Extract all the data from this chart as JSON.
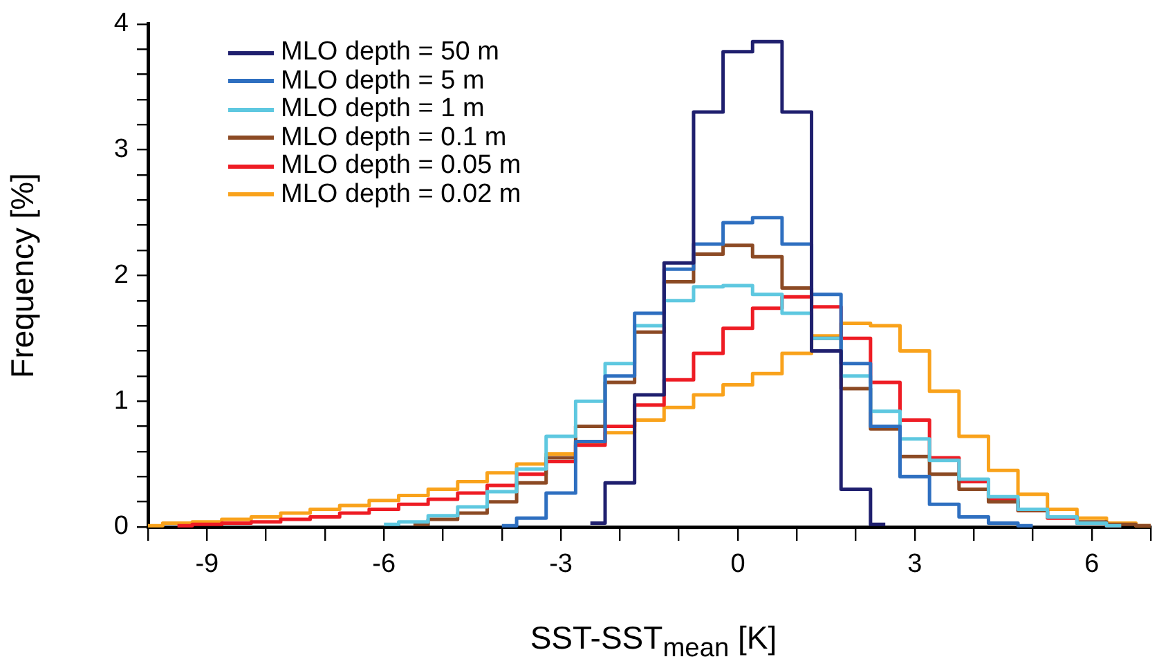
{
  "chart_data": {
    "type": "step",
    "xlabel": "SST-SST$_{mean}$ [K]",
    "ylabel": "Frequency [%]",
    "x": [
      -10,
      -9.5,
      -9,
      -8.5,
      -8,
      -7.5,
      -7,
      -6.5,
      -6,
      -5.5,
      -5,
      -4.5,
      -4,
      -3.5,
      -3,
      -2.5,
      -2,
      -1.5,
      -1,
      -0.5,
      0,
      0.5,
      1,
      1.5,
      2,
      2.5,
      3,
      3.5,
      4,
      4.5,
      5,
      5.5,
      6,
      6.5,
      7
    ],
    "series": [
      {
        "name": "MLO depth = 50 m",
        "color": "#1f1f6e",
        "values": [
          null,
          null,
          null,
          null,
          null,
          null,
          null,
          null,
          null,
          null,
          null,
          null,
          null,
          null,
          null,
          0.03,
          0.35,
          1.05,
          2.1,
          3.3,
          3.78,
          3.86,
          3.3,
          1.4,
          0.3,
          0.02,
          null,
          null,
          null,
          null,
          null,
          null,
          null,
          null,
          null
        ]
      },
      {
        "name": "MLO depth = 5 m",
        "color": "#2e6fc0",
        "values": [
          null,
          null,
          null,
          null,
          null,
          null,
          null,
          null,
          null,
          null,
          null,
          null,
          0.01,
          0.07,
          0.27,
          0.68,
          1.2,
          1.7,
          2.05,
          2.25,
          2.42,
          2.46,
          2.25,
          1.85,
          1.3,
          0.8,
          0.4,
          0.18,
          0.08,
          0.03,
          0.01,
          null,
          null,
          null,
          null
        ]
      },
      {
        "name": "MLO depth = 1 m",
        "color": "#5ec8e0",
        "values": [
          null,
          null,
          null,
          null,
          null,
          null,
          null,
          null,
          0.02,
          0.04,
          0.09,
          0.16,
          0.28,
          0.46,
          0.72,
          1.0,
          1.3,
          1.6,
          1.8,
          1.91,
          1.92,
          1.85,
          1.7,
          1.5,
          1.2,
          0.92,
          0.7,
          0.53,
          0.38,
          0.24,
          0.14,
          0.08,
          0.03,
          0.01,
          null
        ]
      },
      {
        "name": "MLO depth = 0.1 m",
        "color": "#8c4a24",
        "values": [
          null,
          null,
          null,
          null,
          null,
          null,
          null,
          null,
          null,
          0.02,
          0.06,
          0.11,
          0.2,
          0.35,
          0.55,
          0.8,
          1.15,
          1.55,
          1.95,
          2.17,
          2.24,
          2.15,
          1.9,
          1.5,
          1.1,
          0.78,
          0.56,
          0.42,
          0.3,
          0.2,
          0.13,
          0.08,
          0.04,
          0.02,
          0.01
        ]
      },
      {
        "name": "MLO depth = 0.05 m",
        "color": "#ee1c24",
        "values": [
          null,
          0.01,
          0.02,
          0.03,
          0.04,
          0.06,
          0.08,
          0.11,
          0.14,
          0.18,
          0.22,
          0.27,
          0.33,
          0.42,
          0.52,
          0.65,
          0.8,
          0.97,
          1.17,
          1.38,
          1.58,
          1.74,
          1.83,
          1.75,
          1.5,
          1.15,
          0.85,
          0.55,
          0.36,
          0.22,
          0.13,
          0.07,
          0.03,
          0.01,
          null
        ]
      },
      {
        "name": "MLO depth = 0.02 m",
        "color": "#f9a21b",
        "values": [
          0.01,
          0.03,
          0.04,
          0.06,
          0.08,
          0.11,
          0.14,
          0.17,
          0.21,
          0.25,
          0.3,
          0.36,
          0.43,
          0.5,
          0.58,
          0.67,
          0.75,
          0.85,
          0.95,
          1.05,
          1.13,
          1.22,
          1.38,
          1.52,
          1.62,
          1.6,
          1.4,
          1.08,
          0.72,
          0.45,
          0.26,
          0.14,
          0.07,
          0.03,
          0.01
        ]
      }
    ],
    "xlim": [
      -10,
      7
    ],
    "xticks": [
      {
        "value": -10,
        "label": null
      },
      -9,
      {
        "value": -8,
        "label": null
      },
      {
        "value": -7,
        "label": null
      },
      -6,
      {
        "value": -5,
        "label": null
      },
      {
        "value": -4,
        "label": null
      },
      -3,
      {
        "value": -2,
        "label": null
      },
      {
        "value": -1,
        "label": null
      },
      0,
      {
        "value": 1,
        "label": null
      },
      {
        "value": 2,
        "label": null
      },
      3,
      {
        "value": 4,
        "label": null
      },
      {
        "value": 5,
        "label": null
      },
      6,
      {
        "value": 7,
        "label": null
      }
    ],
    "ylim": [
      0,
      4
    ],
    "yticks": [
      0,
      {
        "value": 0.2,
        "label": null
      },
      {
        "value": 0.4,
        "label": null
      },
      {
        "value": 0.6,
        "label": null
      },
      {
        "value": 0.8,
        "label": null
      },
      1,
      {
        "value": 1.2,
        "label": null
      },
      {
        "value": 1.4,
        "label": null
      },
      {
        "value": 1.6,
        "label": null
      },
      {
        "value": 1.8,
        "label": null
      },
      2,
      {
        "value": 2.2,
        "label": null
      },
      {
        "value": 2.4,
        "label": null
      },
      {
        "value": 2.6,
        "label": null
      },
      {
        "value": 2.8,
        "label": null
      },
      3,
      {
        "value": 3.2,
        "label": null
      },
      {
        "value": 3.4,
        "label": null
      },
      {
        "value": 3.6,
        "label": null
      },
      {
        "value": 3.8,
        "label": null
      },
      4
    ],
    "grid": false,
    "legend": "top left",
    "line_style": "solid",
    "marker": "none"
  }
}
